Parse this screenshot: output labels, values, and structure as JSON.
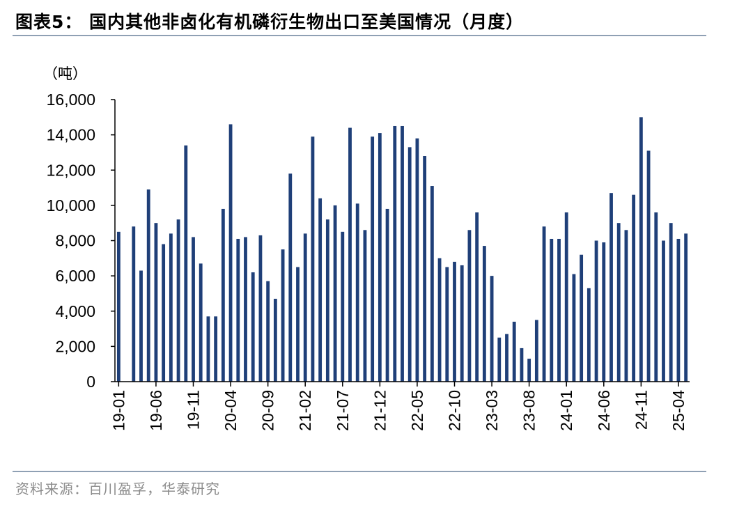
{
  "page": {
    "title": "图表5：  国内其他非卤化有机磷衍生物出口至美国情况（月度）",
    "unit": "（吨）",
    "source": "资料来源：百川盈孚，华泰研究"
  },
  "chart_data": {
    "type": "bar",
    "title": "图表5：  国内其他非卤化有机磷衍生物出口至美国情况（月度）",
    "ylabel": "（吨）",
    "xlabel": "",
    "ylim": [
      0,
      16000
    ],
    "yticks": [
      0,
      2000,
      4000,
      6000,
      8000,
      10000,
      12000,
      14000,
      16000
    ],
    "ytick_labels": [
      "0",
      "2,000",
      "4,000",
      "6,000",
      "8,000",
      "10,000",
      "12,000",
      "14,000",
      "16,000"
    ],
    "xtick_labels": [
      "19-01",
      "19-06",
      "19-11",
      "20-04",
      "20-09",
      "21-02",
      "21-07",
      "21-12",
      "22-05",
      "22-10",
      "23-03",
      "23-08",
      "24-01",
      "24-06",
      "24-11",
      "25-04"
    ],
    "color": "#1f3f78",
    "grid": false,
    "categories": [
      "19-01",
      "19-02",
      "19-03",
      "19-04",
      "19-05",
      "19-06",
      "19-07",
      "19-08",
      "19-09",
      "19-10",
      "19-11",
      "19-12",
      "20-01",
      "20-02",
      "20-03",
      "20-04",
      "20-05",
      "20-06",
      "20-07",
      "20-08",
      "20-09",
      "20-10",
      "20-11",
      "20-12",
      "21-01",
      "21-02",
      "21-03",
      "21-04",
      "21-05",
      "21-06",
      "21-07",
      "21-08",
      "21-09",
      "21-10",
      "21-11",
      "21-12",
      "22-01",
      "22-02",
      "22-03",
      "22-04",
      "22-05",
      "22-06",
      "22-07",
      "22-08",
      "22-09",
      "22-10",
      "22-11",
      "22-12",
      "23-01",
      "23-02",
      "23-03",
      "23-04",
      "23-05",
      "23-06",
      "23-07",
      "23-08",
      "23-09",
      "23-10",
      "23-11",
      "23-12",
      "24-01",
      "24-02",
      "24-03",
      "24-04",
      "24-05",
      "24-06",
      "24-07",
      "24-08",
      "24-09",
      "24-10",
      "24-11",
      "24-12",
      "25-01",
      "25-02",
      "25-03",
      "25-04",
      "25-05"
    ],
    "values": [
      8500,
      0,
      8800,
      6300,
      10900,
      9000,
      7800,
      8400,
      9200,
      13400,
      8200,
      6700,
      3700,
      3700,
      9800,
      14600,
      8100,
      8200,
      6200,
      8300,
      5700,
      4700,
      7500,
      11800,
      6500,
      8400,
      13900,
      10400,
      9200,
      10000,
      8500,
      14400,
      10100,
      8600,
      13900,
      14100,
      9800,
      14500,
      14500,
      13300,
      13800,
      12800,
      11100,
      7000,
      6500,
      6800,
      6600,
      8600,
      9600,
      7700,
      6000,
      2500,
      2700,
      3400,
      1900,
      1300,
      3500,
      8800,
      8100,
      8100,
      9600,
      6100,
      7200,
      5300,
      8000,
      7900,
      10700,
      9000,
      8600,
      10600,
      15000,
      13100,
      9600,
      8000,
      9000,
      8100,
      8400
    ]
  }
}
